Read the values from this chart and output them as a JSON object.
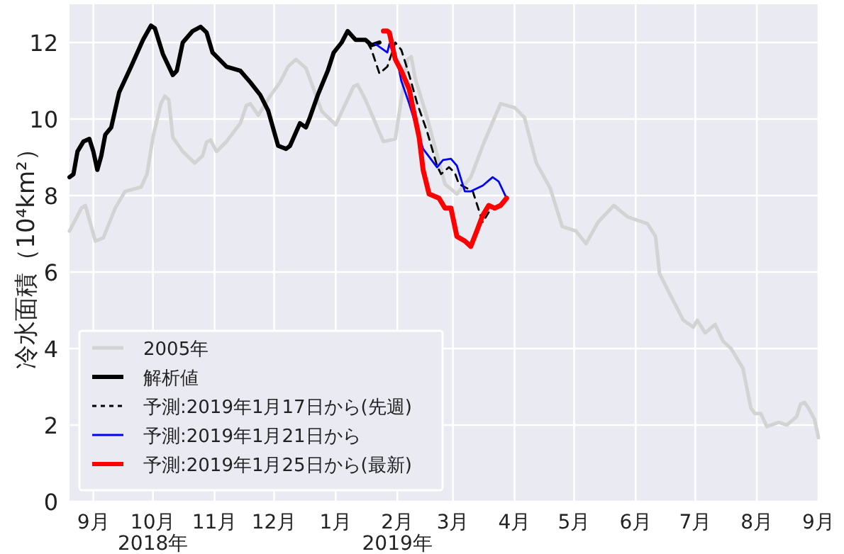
{
  "chart_data": {
    "type": "line",
    "ylabel": "冷水面積（10⁴km²）",
    "xlim": [
      "2018-08-20",
      "2019-09-01"
    ],
    "ylim": [
      0,
      13
    ],
    "yticks": [
      0,
      2,
      4,
      6,
      8,
      10,
      12
    ],
    "xticks": [
      {
        "value": "2018-09-01",
        "label": "9月"
      },
      {
        "value": "2018-10-01",
        "label": "10月\n2018年"
      },
      {
        "value": "2018-11-01",
        "label": "11月"
      },
      {
        "value": "2018-12-01",
        "label": "12月"
      },
      {
        "value": "2019-01-01",
        "label": "1月"
      },
      {
        "value": "2019-02-01",
        "label": "2月\n2019年"
      },
      {
        "value": "2019-03-01",
        "label": "3月"
      },
      {
        "value": "2019-04-01",
        "label": "4月"
      },
      {
        "value": "2019-05-01",
        "label": "5月"
      },
      {
        "value": "2019-06-01",
        "label": "6月"
      },
      {
        "value": "2019-07-01",
        "label": "7月"
      },
      {
        "value": "2019-08-01",
        "label": "8月"
      },
      {
        "value": "2019-09-01",
        "label": "9月"
      }
    ],
    "grid": true,
    "legend": "bottom left",
    "marker": "none",
    "series": [
      {
        "name": "2005年",
        "color": "#d3d3d3",
        "line_style": "solid",
        "x": [
          "2018-08-20",
          "2018-08-26",
          "2018-08-28",
          "2018-09-02",
          "2018-09-06",
          "2018-09-12",
          "2018-09-17",
          "2018-09-25",
          "2018-09-28",
          "2018-10-01",
          "2018-10-05",
          "2018-10-07",
          "2018-10-09",
          "2018-10-11",
          "2018-10-16",
          "2018-10-22",
          "2018-10-26",
          "2018-10-28",
          "2018-10-30",
          "2018-11-02",
          "2018-11-07",
          "2018-11-14",
          "2018-11-17",
          "2018-11-19",
          "2018-11-23",
          "2018-11-29",
          "2018-12-04",
          "2018-12-08",
          "2018-12-12",
          "2018-12-17",
          "2018-12-25",
          "2019-01-01",
          "2019-01-10",
          "2019-01-12",
          "2019-01-16",
          "2019-01-25",
          "2019-01-31",
          "2019-02-06",
          "2019-02-08",
          "2019-02-10",
          "2019-02-16",
          "2019-02-25",
          "2019-03-03",
          "2019-03-10",
          "2019-03-16",
          "2019-03-22",
          "2019-03-25",
          "2019-04-01",
          "2019-04-06",
          "2019-04-12",
          "2019-04-19",
          "2019-04-25",
          "2019-05-02",
          "2019-05-07",
          "2019-05-13",
          "2019-05-21",
          "2019-05-28",
          "2019-06-07",
          "2019-06-11",
          "2019-06-13",
          "2019-06-18",
          "2019-06-25",
          "2019-06-30",
          "2019-07-02",
          "2019-07-06",
          "2019-07-11",
          "2019-07-15",
          "2019-07-19",
          "2019-07-25",
          "2019-07-29",
          "2019-07-31",
          "2019-08-03",
          "2019-08-06",
          "2019-08-12",
          "2019-08-16",
          "2019-08-21",
          "2019-08-23",
          "2019-08-25",
          "2019-08-27",
          "2019-08-30",
          "2019-09-01"
        ],
        "values": [
          7.07,
          7.67,
          7.74,
          6.81,
          6.89,
          7.67,
          8.11,
          8.22,
          8.56,
          9.52,
          10.4,
          10.6,
          10.5,
          9.52,
          9.15,
          8.85,
          9.04,
          9.4,
          9.45,
          9.15,
          9.41,
          9.89,
          10.35,
          10.4,
          10.1,
          10.6,
          10.96,
          11.37,
          11.56,
          11.33,
          10.2,
          9.85,
          10.85,
          10.9,
          10.5,
          9.41,
          9.48,
          11.55,
          11.63,
          11.07,
          10.04,
          8.3,
          8.04,
          8.48,
          9.3,
          10.04,
          10.4,
          10.3,
          10.04,
          8.85,
          8.19,
          7.19,
          7.07,
          6.74,
          7.3,
          7.74,
          7.44,
          7.26,
          6.93,
          5.96,
          5.44,
          4.74,
          4.56,
          4.74,
          4.41,
          4.63,
          4.19,
          4.0,
          3.48,
          2.44,
          2.3,
          2.3,
          1.96,
          2.07,
          2.0,
          2.22,
          2.55,
          2.59,
          2.44,
          2.15,
          1.67
        ]
      },
      {
        "name": "解析値",
        "color": "#000000",
        "line_style": "solid",
        "x": [
          "2018-08-20",
          "2018-08-22",
          "2018-08-24",
          "2018-08-27",
          "2018-08-30",
          "2018-09-01",
          "2018-09-03",
          "2018-09-05",
          "2018-09-07",
          "2018-09-10",
          "2018-09-14",
          "2018-09-20",
          "2018-09-26",
          "2018-09-30",
          "2018-10-02",
          "2018-10-06",
          "2018-10-11",
          "2018-10-13",
          "2018-10-16",
          "2018-10-21",
          "2018-10-25",
          "2018-10-28",
          "2018-10-31",
          "2018-11-07",
          "2018-11-14",
          "2018-11-19",
          "2018-11-24",
          "2018-11-28",
          "2018-12-03",
          "2018-12-07",
          "2018-12-09",
          "2018-12-14",
          "2018-12-17",
          "2018-12-19",
          "2018-12-23",
          "2018-12-28",
          "2018-12-31",
          "2019-01-04",
          "2019-01-07",
          "2019-01-11",
          "2019-01-16",
          "2019-01-19",
          "2019-01-23"
        ],
        "values": [
          8.48,
          8.56,
          9.15,
          9.41,
          9.48,
          9.15,
          8.67,
          9.04,
          9.59,
          9.78,
          10.7,
          11.37,
          12.07,
          12.44,
          12.37,
          11.7,
          11.15,
          11.26,
          12.0,
          12.3,
          12.41,
          12.26,
          11.74,
          11.37,
          11.26,
          10.96,
          10.63,
          10.22,
          9.3,
          9.22,
          9.3,
          9.89,
          9.78,
          10.04,
          10.63,
          11.26,
          11.74,
          12.0,
          12.3,
          12.07,
          12.07,
          11.93,
          12.0
        ]
      },
      {
        "name": "予測:2019年1月17日から(先週)",
        "color": "#000000",
        "line_style": "dashed",
        "x": [
          "2019-01-17",
          "2019-01-19",
          "2019-01-23",
          "2019-01-27",
          "2019-01-31",
          "2019-02-03",
          "2019-02-07",
          "2019-02-11",
          "2019-02-16",
          "2019-02-21",
          "2019-02-23",
          "2019-02-27",
          "2019-03-02",
          "2019-03-04",
          "2019-03-11",
          "2019-03-16",
          "2019-03-19"
        ],
        "values": [
          12.0,
          11.81,
          11.19,
          11.37,
          12.0,
          11.81,
          11.15,
          10.41,
          9.67,
          8.78,
          8.56,
          8.74,
          8.59,
          8.3,
          8.11,
          7.3,
          7.56
        ]
      },
      {
        "name": "予測:2019年1月21日から",
        "color": "#0000ff",
        "line_style": "solid",
        "x": [
          "2019-01-21",
          "2019-01-27",
          "2019-01-28",
          "2019-02-01",
          "2019-02-03",
          "2019-02-07",
          "2019-02-10",
          "2019-02-14",
          "2019-02-21",
          "2019-02-24",
          "2019-02-28",
          "2019-03-03",
          "2019-03-07",
          "2019-03-10",
          "2019-03-16",
          "2019-03-21",
          "2019-03-24",
          "2019-03-28"
        ],
        "values": [
          11.96,
          11.74,
          11.96,
          11.52,
          11.0,
          10.4,
          9.89,
          9.22,
          8.74,
          8.93,
          8.96,
          8.78,
          8.11,
          8.11,
          8.26,
          8.48,
          8.37,
          7.93
        ]
      },
      {
        "name": "予測:2019年1月25日から(最新)",
        "color": "#ff0000",
        "line_style": "solid",
        "x": [
          "2019-01-25",
          "2019-01-27",
          "2019-01-28",
          "2019-01-31",
          "2019-02-03",
          "2019-02-07",
          "2019-02-09",
          "2019-02-12",
          "2019-02-14",
          "2019-02-17",
          "2019-02-22",
          "2019-02-25",
          "2019-02-28",
          "2019-03-03",
          "2019-03-07",
          "2019-03-10",
          "2019-03-13",
          "2019-03-16",
          "2019-03-19",
          "2019-03-22",
          "2019-03-25",
          "2019-03-28"
        ],
        "values": [
          12.3,
          12.3,
          12.26,
          11.56,
          11.26,
          10.78,
          10.26,
          9.52,
          8.67,
          8.04,
          7.93,
          7.67,
          7.67,
          6.93,
          6.81,
          6.67,
          7.07,
          7.48,
          7.74,
          7.67,
          7.74,
          7.93
        ]
      }
    ]
  }
}
